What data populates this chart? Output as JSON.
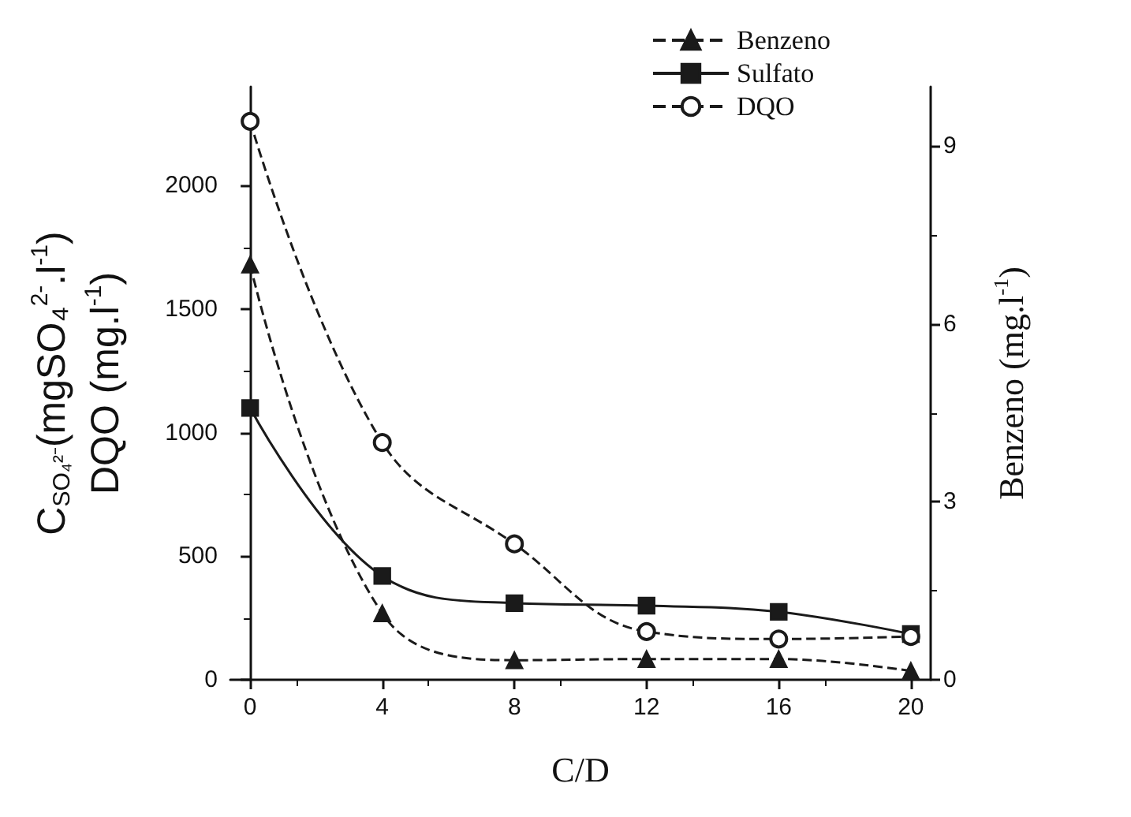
{
  "chart_data": {
    "type": "line",
    "x": [
      0,
      4,
      8,
      12,
      16,
      20
    ],
    "xlabel": "C/D",
    "ylabel": "C$_{SO₄²⁻}$(mgSO₄$^{2-}$.l$^{-1}$)\nDQO (mg.l$^{-1}$)",
    "y2label": "Benzeno (mg.l$^{-1}$)",
    "xlim": [
      -0.6,
      20.6
    ],
    "xticks": [
      0,
      4,
      8,
      12,
      16,
      20
    ],
    "ylim": [
      0,
      2400
    ],
    "yticks": [
      0,
      500,
      1000,
      1500,
      2000
    ],
    "y2lim": [
      0,
      10
    ],
    "y2ticks": [
      0,
      3,
      6,
      9
    ],
    "series": [
      {
        "name": "Benzeno",
        "color": "#1a1a1a",
        "axis": "y2",
        "marker": "triangle",
        "line_style": "dashed",
        "values": [
          7.0,
          1.12,
          0.33,
          0.35,
          0.35,
          0.15
        ]
      },
      {
        "name": "Sulfato",
        "color": "#1a1a1a",
        "marker": "square",
        "line_style": "solid",
        "values": [
          1100,
          420,
          310,
          300,
          275,
          185
        ]
      },
      {
        "name": "DQO",
        "color": "#1a1a1a",
        "marker": "circle",
        "line_style": "dashed",
        "values": [
          2260,
          960,
          550,
          195,
          165,
          175
        ]
      }
    ],
    "legend": "top right",
    "grid": false
  }
}
